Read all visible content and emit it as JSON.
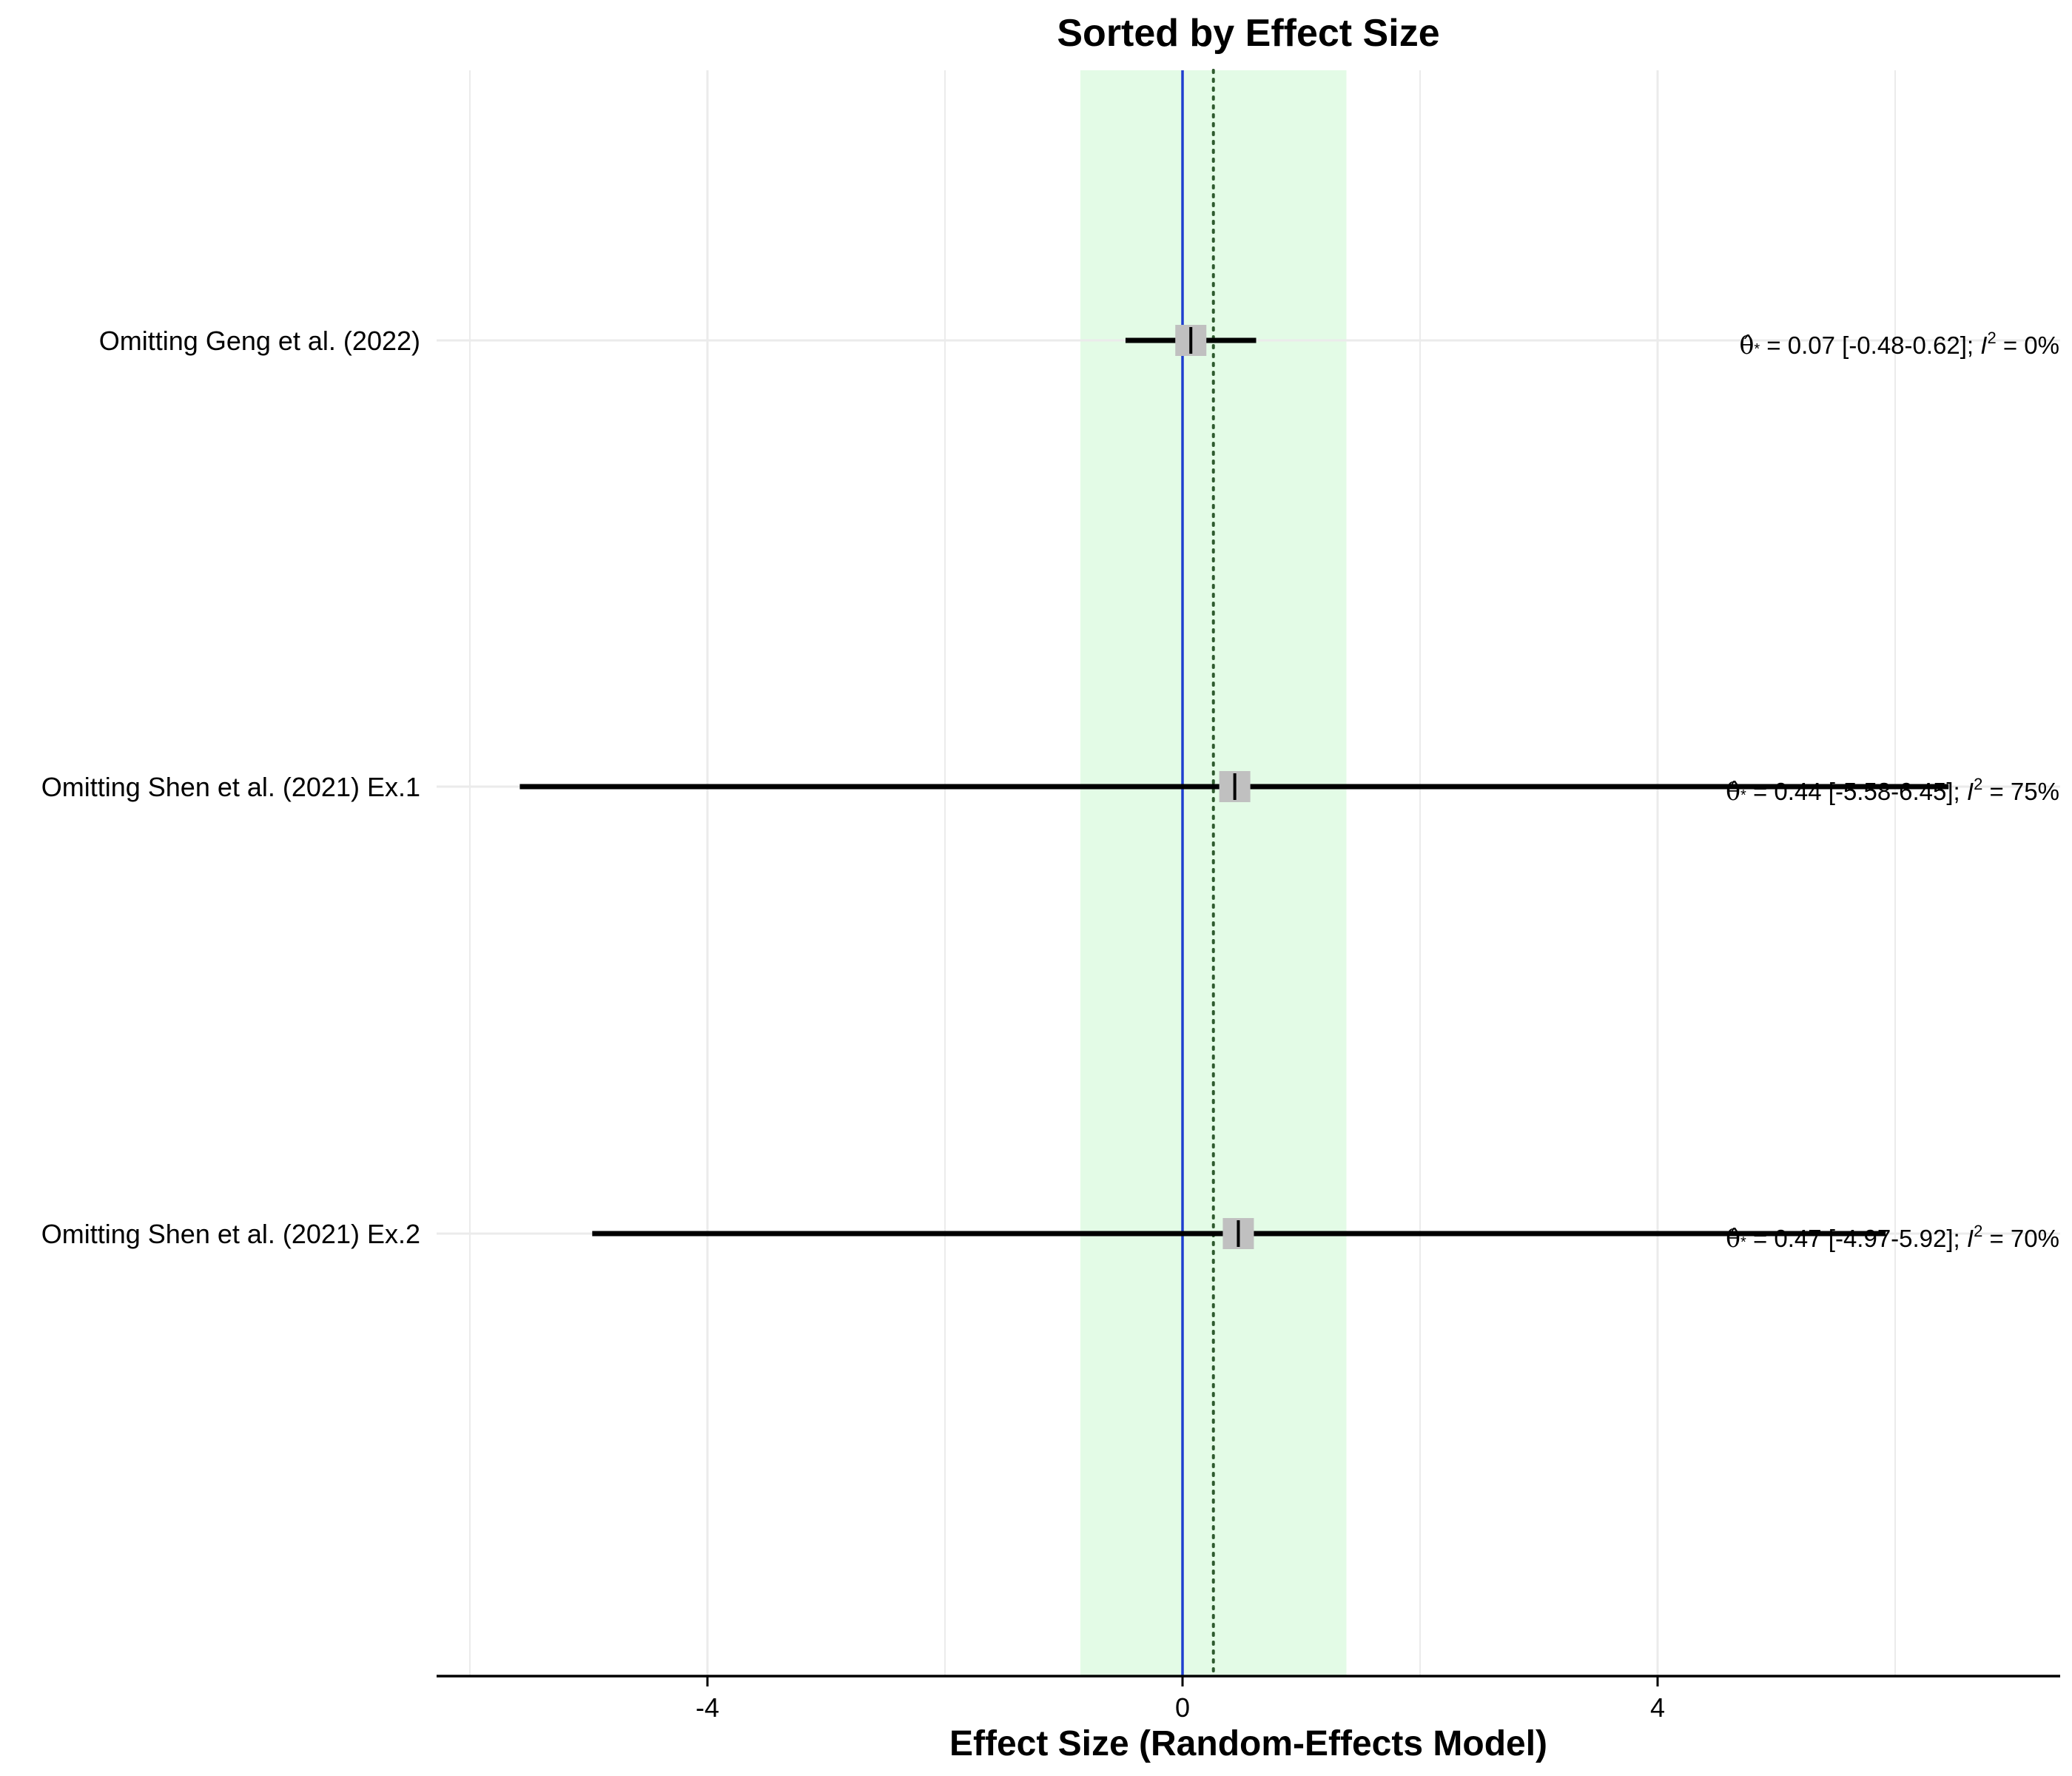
{
  "chart_data": {
    "type": "forest",
    "title": "Sorted by Effect Size",
    "xlabel": "Effect Size (Random-Effects Model)",
    "xlim": [
      -6.3,
      7.4
    ],
    "x_ticks": [
      -4,
      0,
      4
    ],
    "grid": true,
    "reference_line": 0,
    "pooled_estimate": 0.26,
    "pooled_ci": [
      -0.86,
      1.38
    ],
    "rows": [
      {
        "label": "Omitting Geng et al. (2022)",
        "estimate": 0.07,
        "ci": [
          -0.48,
          0.62
        ],
        "i2": "0%",
        "annot_est": "0.07",
        "annot_ci": "[-0.48-0.62];",
        "annot_i2": " 0%"
      },
      {
        "label": "Omitting Shen et al. (2021) Ex.1",
        "estimate": 0.44,
        "ci": [
          -5.58,
          6.45
        ],
        "i2": "75%",
        "annot_est": "0.44",
        "annot_ci": "[-5.58-6.45];",
        "annot_i2": "75%"
      },
      {
        "label": "Omitting Shen et al. (2021) Ex.2",
        "estimate": 0.47,
        "ci": [
          -4.97,
          5.92
        ],
        "i2": "70%",
        "annot_est": "0.47",
        "annot_ci": "[-4.97-5.92];",
        "annot_i2": "70%"
      }
    ],
    "colors": {
      "pooled_band": "#e3fbe6",
      "reference_line": "#1f3fcf",
      "pooled_line": "#2e5a2e",
      "ci_line": "#000000",
      "point_box": "#c0c0c0",
      "grid": "#ebebeb"
    }
  }
}
